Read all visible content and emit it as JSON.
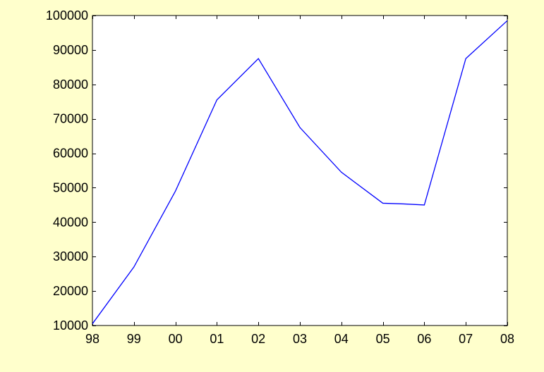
{
  "colors": {
    "background": "#FFFFCC",
    "plot_background": "#FFFFFF",
    "series_line": "#0000FF",
    "axis": "#000000"
  },
  "chart_data": {
    "type": "line",
    "title": "",
    "xlabel": "",
    "ylabel": "",
    "grid": false,
    "legend": "none",
    "categories": [
      "98",
      "99",
      "00",
      "01",
      "02",
      "03",
      "04",
      "05",
      "06",
      "07",
      "08"
    ],
    "x_ticks": [
      "98",
      "99",
      "00",
      "01",
      "02",
      "03",
      "04",
      "05",
      "06",
      "07",
      "08"
    ],
    "y_ticks": [
      "10000",
      "20000",
      "30000",
      "40000",
      "50000",
      "60000",
      "70000",
      "80000",
      "90000",
      "100000"
    ],
    "ylim": [
      10000,
      100000
    ],
    "series": [
      {
        "points": [
          {
            "x": 0.0,
            "y": 10500
          },
          {
            "x": 1.0,
            "y": 27000
          },
          {
            "x": 2.0,
            "y": 49000
          },
          {
            "x": 3.0,
            "y": 75500
          },
          {
            "x": 4.0,
            "y": 87500
          },
          {
            "x": 5.0,
            "y": 67500
          },
          {
            "x": 6.0,
            "y": 54500
          },
          {
            "x": 7.0,
            "y": 45500
          },
          {
            "x": 7.5,
            "y": 45300
          },
          {
            "x": 8.0,
            "y": 45000
          },
          {
            "x": 9.0,
            "y": 87500
          },
          {
            "x": 10.0,
            "y": 98500
          }
        ]
      }
    ]
  }
}
